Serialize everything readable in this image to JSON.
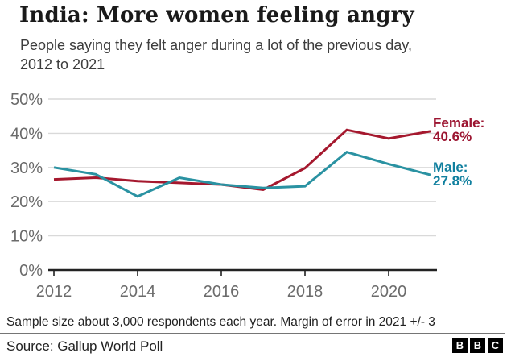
{
  "header": {
    "title": "India: More women feeling angry",
    "subtitle": "People saying they felt anger during a lot of the previous day, 2012 to 2021",
    "subtitle_lines": [
      "People saying they felt anger during a lot of the previous day,",
      "2012 to 2021"
    ]
  },
  "chart_data": {
    "type": "line",
    "title": "India: More women feeling angry",
    "xlabel": "",
    "ylabel": "",
    "x": [
      2012,
      2013,
      2014,
      2015,
      2016,
      2017,
      2018,
      2019,
      2020,
      2021
    ],
    "series": [
      {
        "name": "Female",
        "values": [
          26.5,
          27,
          26,
          25.5,
          25,
          23.5,
          29.8,
          41,
          38.5,
          40.6
        ],
        "end_label": "40.6%",
        "color": "#a5182e",
        "label_color": "#9c1531"
      },
      {
        "name": "Male",
        "values": [
          30,
          28,
          21.5,
          27,
          25,
          24,
          24.5,
          34.5,
          31,
          27.8
        ],
        "end_label": "27.8%",
        "color": "#2a92a2",
        "label_color": "#11809f"
      }
    ],
    "ylim": [
      0,
      50
    ],
    "yticks": [
      0,
      10,
      20,
      30,
      40,
      50
    ],
    "ytick_suffix": "%",
    "xticks": [
      2012,
      2014,
      2016,
      2018,
      2020
    ],
    "grid": "horizontal",
    "legend_position": "right-of-line-end"
  },
  "axis_style": {
    "grid_color": "#d9d9d9",
    "axis_color": "#222222",
    "tick_label_color": "#6b6b6b"
  },
  "footer": {
    "note": "Sample size about 3,000 respondents each year. Margin of error in 2021 +/- 3",
    "source": "Source: Gallup World Poll",
    "logo_letters": [
      "B",
      "B",
      "C"
    ]
  }
}
